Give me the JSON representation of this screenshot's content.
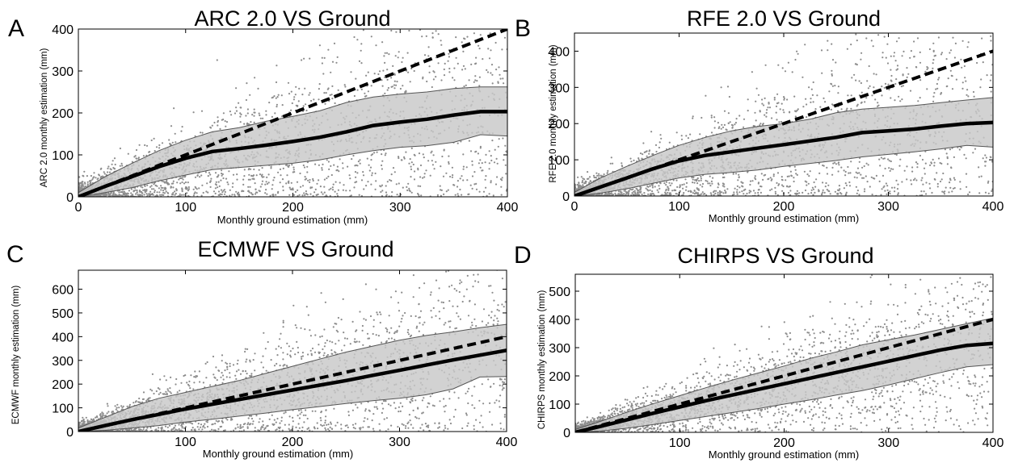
{
  "chart_data": [
    {
      "type": "scatter",
      "panel_letter": "A",
      "title": "ARC 2.0 VS Ground",
      "xlabel": "Monthly ground estimation (mm)",
      "ylabel": "ARC 2.0 monthly estimation (mm)",
      "xlim": [
        0,
        400
      ],
      "ylim": [
        0,
        400
      ],
      "xticks": [
        0,
        100,
        200,
        300,
        400
      ],
      "yticks": [
        100,
        200,
        300,
        400
      ],
      "series": [
        {
          "role": "1:1 line",
          "style": "dashed",
          "x": [
            0,
            400
          ],
          "y": [
            0,
            400
          ]
        },
        {
          "role": "median",
          "x": [
            0,
            25,
            50,
            75,
            100,
            125,
            150,
            175,
            200,
            225,
            250,
            275,
            300,
            325,
            350,
            375,
            400
          ],
          "y": [
            0,
            25,
            48,
            72,
            92,
            108,
            115,
            123,
            132,
            142,
            155,
            170,
            178,
            185,
            195,
            203,
            203
          ]
        },
        {
          "role": "band upper",
          "x": [
            0,
            25,
            50,
            75,
            100,
            125,
            150,
            175,
            200,
            225,
            250,
            275,
            300,
            325,
            350,
            375,
            400
          ],
          "y": [
            10,
            48,
            80,
            110,
            135,
            155,
            165,
            180,
            192,
            205,
            225,
            238,
            245,
            250,
            258,
            262,
            262
          ]
        },
        {
          "role": "band lower",
          "x": [
            0,
            25,
            50,
            75,
            100,
            125,
            150,
            175,
            200,
            225,
            250,
            275,
            300,
            325,
            350,
            375,
            400
          ],
          "y": [
            0,
            10,
            22,
            38,
            52,
            65,
            70,
            75,
            80,
            88,
            100,
            110,
            118,
            122,
            130,
            148,
            145
          ]
        }
      ],
      "scatter": {
        "n": 2600,
        "seed": 11,
        "slope": 0.55,
        "sd_base": 12,
        "sd_frac": 0.42,
        "xmax": 400
      }
    },
    {
      "type": "scatter",
      "panel_letter": "B",
      "title": "RFE 2.0 VS Ground",
      "xlabel": "Monthly ground estimation (mm)",
      "ylabel": "RFE 2.0 monthly estimation (mm)",
      "xlim": [
        0,
        400
      ],
      "ylim": [
        0,
        450
      ],
      "xticks": [
        0,
        100,
        200,
        300,
        400
      ],
      "yticks": [
        100,
        200,
        300,
        400
      ],
      "series": [
        {
          "role": "1:1 line",
          "style": "dashed",
          "x": [
            0,
            400
          ],
          "y": [
            0,
            400
          ]
        },
        {
          "role": "median",
          "x": [
            0,
            25,
            50,
            75,
            100,
            125,
            150,
            175,
            200,
            225,
            250,
            275,
            300,
            325,
            350,
            375,
            400
          ],
          "y": [
            0,
            25,
            50,
            75,
            97,
            112,
            122,
            132,
            142,
            152,
            162,
            175,
            180,
            185,
            193,
            200,
            203
          ]
        },
        {
          "role": "band upper",
          "x": [
            0,
            25,
            50,
            75,
            100,
            125,
            150,
            175,
            200,
            225,
            250,
            275,
            300,
            325,
            350,
            375,
            400
          ],
          "y": [
            10,
            50,
            82,
            112,
            140,
            162,
            180,
            192,
            200,
            212,
            230,
            240,
            245,
            250,
            258,
            265,
            272
          ]
        },
        {
          "role": "band lower",
          "x": [
            0,
            25,
            50,
            75,
            100,
            125,
            150,
            175,
            200,
            225,
            250,
            275,
            300,
            325,
            350,
            375,
            400
          ],
          "y": [
            0,
            8,
            20,
            35,
            50,
            60,
            65,
            72,
            82,
            90,
            98,
            108,
            115,
            122,
            130,
            140,
            135
          ]
        }
      ],
      "scatter": {
        "n": 2600,
        "seed": 23,
        "slope": 0.6,
        "sd_base": 12,
        "sd_frac": 0.45,
        "xmax": 400
      }
    },
    {
      "type": "scatter",
      "panel_letter": "C",
      "title": "ECMWF VS Ground",
      "xlabel": "Monthly ground estimation (mm)",
      "ylabel": "ECMWF monthly estimation (mm)",
      "xlim": [
        0,
        400
      ],
      "ylim": [
        0,
        680
      ],
      "xticks": [
        100,
        200,
        300,
        400
      ],
      "yticks": [
        0,
        100,
        200,
        300,
        400,
        500,
        600
      ],
      "series": [
        {
          "role": "1:1 line",
          "style": "dashed",
          "x": [
            0,
            400
          ],
          "y": [
            0,
            400
          ]
        },
        {
          "role": "median",
          "x": [
            0,
            25,
            50,
            75,
            100,
            125,
            150,
            175,
            200,
            225,
            250,
            275,
            300,
            325,
            350,
            375,
            400
          ],
          "y": [
            0,
            25,
            50,
            72,
            95,
            115,
            135,
            155,
            175,
            195,
            215,
            237,
            258,
            280,
            302,
            322,
            342
          ]
        },
        {
          "role": "band upper",
          "x": [
            0,
            25,
            50,
            75,
            100,
            125,
            150,
            175,
            200,
            225,
            250,
            275,
            300,
            325,
            350,
            375,
            400
          ],
          "y": [
            15,
            60,
            105,
            140,
            165,
            190,
            215,
            245,
            275,
            305,
            335,
            360,
            385,
            405,
            420,
            438,
            452
          ]
        },
        {
          "role": "band lower",
          "x": [
            0,
            25,
            50,
            75,
            100,
            125,
            150,
            175,
            200,
            225,
            250,
            275,
            300,
            325,
            350,
            375,
            400
          ],
          "y": [
            0,
            5,
            15,
            25,
            40,
            52,
            65,
            78,
            92,
            105,
            118,
            130,
            140,
            155,
            180,
            230,
            232
          ]
        }
      ],
      "scatter": {
        "n": 2600,
        "seed": 37,
        "slope": 0.85,
        "sd_base": 14,
        "sd_frac": 0.55,
        "xmax": 400
      }
    },
    {
      "type": "scatter",
      "panel_letter": "D",
      "title": "CHIRPS VS Ground",
      "xlabel": "Monthly ground estimation (mm)",
      "ylabel": "CHIRPS monthly estimation (mm)",
      "xlim": [
        0,
        400
      ],
      "ylim": [
        0,
        560
      ],
      "xticks": [
        100,
        200,
        300,
        400
      ],
      "yticks": [
        0,
        100,
        200,
        300,
        400,
        500
      ],
      "series": [
        {
          "role": "1:1 line",
          "style": "dashed",
          "x": [
            0,
            400
          ],
          "y": [
            0,
            400
          ]
        },
        {
          "role": "median",
          "x": [
            0,
            25,
            50,
            75,
            100,
            125,
            150,
            175,
            200,
            225,
            250,
            275,
            300,
            325,
            350,
            375,
            400
          ],
          "y": [
            0,
            22,
            45,
            68,
            90,
            112,
            132,
            152,
            172,
            192,
            212,
            232,
            252,
            272,
            292,
            308,
            315
          ]
        },
        {
          "role": "band upper",
          "x": [
            0,
            25,
            50,
            75,
            100,
            125,
            150,
            175,
            200,
            225,
            250,
            275,
            300,
            325,
            350,
            375,
            400
          ],
          "y": [
            10,
            40,
            72,
            102,
            130,
            158,
            185,
            210,
            235,
            262,
            285,
            310,
            328,
            345,
            365,
            385,
            405
          ]
        },
        {
          "role": "band lower",
          "x": [
            0,
            25,
            50,
            75,
            100,
            125,
            150,
            175,
            200,
            225,
            250,
            275,
            300,
            325,
            350,
            375,
            400
          ],
          "y": [
            0,
            5,
            15,
            28,
            42,
            56,
            70,
            84,
            100,
            115,
            132,
            148,
            168,
            190,
            212,
            232,
            240
          ]
        }
      ],
      "scatter": {
        "n": 2600,
        "seed": 53,
        "slope": 0.78,
        "sd_base": 10,
        "sd_frac": 0.38,
        "xmax": 400
      }
    }
  ],
  "colors": {
    "scatter": "#8c8c8c",
    "band_fill": "#c8c8c8",
    "band_edge": "#555555",
    "median": "#000000",
    "one_to_one": "#000000",
    "axis": "#000000"
  }
}
